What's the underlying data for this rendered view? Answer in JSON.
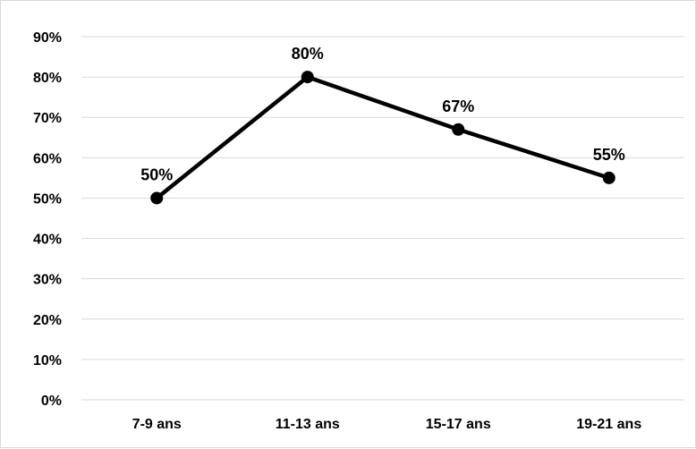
{
  "chart_data": {
    "type": "line",
    "categories": [
      "7-9 ans",
      "11-13 ans",
      "15-17 ans",
      "19-21 ans"
    ],
    "values": [
      50,
      80,
      67,
      55
    ],
    "data_labels": [
      "50%",
      "80%",
      "67%",
      "55%"
    ],
    "y_ticks": [
      "0%",
      "10%",
      "20%",
      "30%",
      "40%",
      "50%",
      "60%",
      "70%",
      "80%",
      "90%"
    ],
    "ylim": [
      0,
      90
    ],
    "title": "",
    "xlabel": "",
    "ylabel": "",
    "grid": true,
    "legend": "none",
    "line_color": "#000000"
  }
}
